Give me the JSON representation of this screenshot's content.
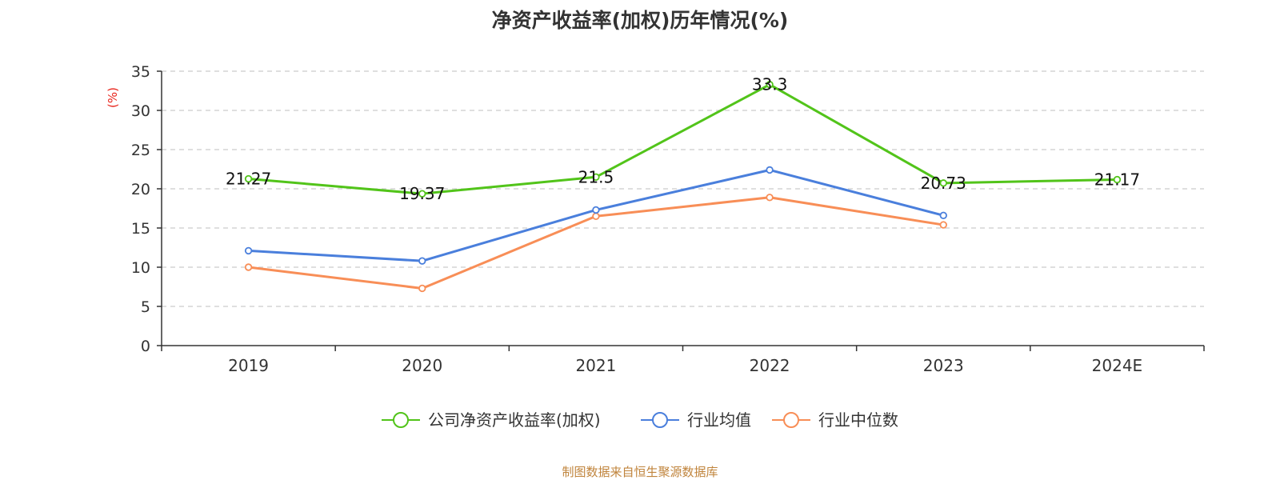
{
  "chart_data": {
    "type": "line",
    "title": "净资产收益率(加权)历年情况(%)",
    "ylabel": "(%)",
    "ylim": [
      0,
      35
    ],
    "yticks": [
      "0",
      "5",
      "10",
      "15",
      "20",
      "25",
      "30",
      "35"
    ],
    "categories": [
      "2019",
      "2020",
      "2021",
      "2022",
      "2023",
      "2024E"
    ],
    "grid": true,
    "legend_position": "bottom",
    "series": [
      {
        "name": "公司净资产收益率(加权)",
        "color": "#52c41a",
        "values": [
          21.27,
          19.37,
          21.5,
          33.3,
          20.73,
          21.17
        ],
        "labels": [
          "21.27",
          "19.37",
          "21.5",
          "33.3",
          "20.73",
          "21.17"
        ]
      },
      {
        "name": "行业均值",
        "color": "#4a7fdc",
        "values": [
          12.1,
          10.8,
          17.3,
          22.4,
          16.6,
          null
        ]
      },
      {
        "name": "行业中位数",
        "color": "#f88e57",
        "values": [
          10.0,
          7.3,
          16.5,
          18.9,
          15.4,
          null
        ]
      }
    ]
  },
  "source": "制图数据来自恒生聚源数据库"
}
